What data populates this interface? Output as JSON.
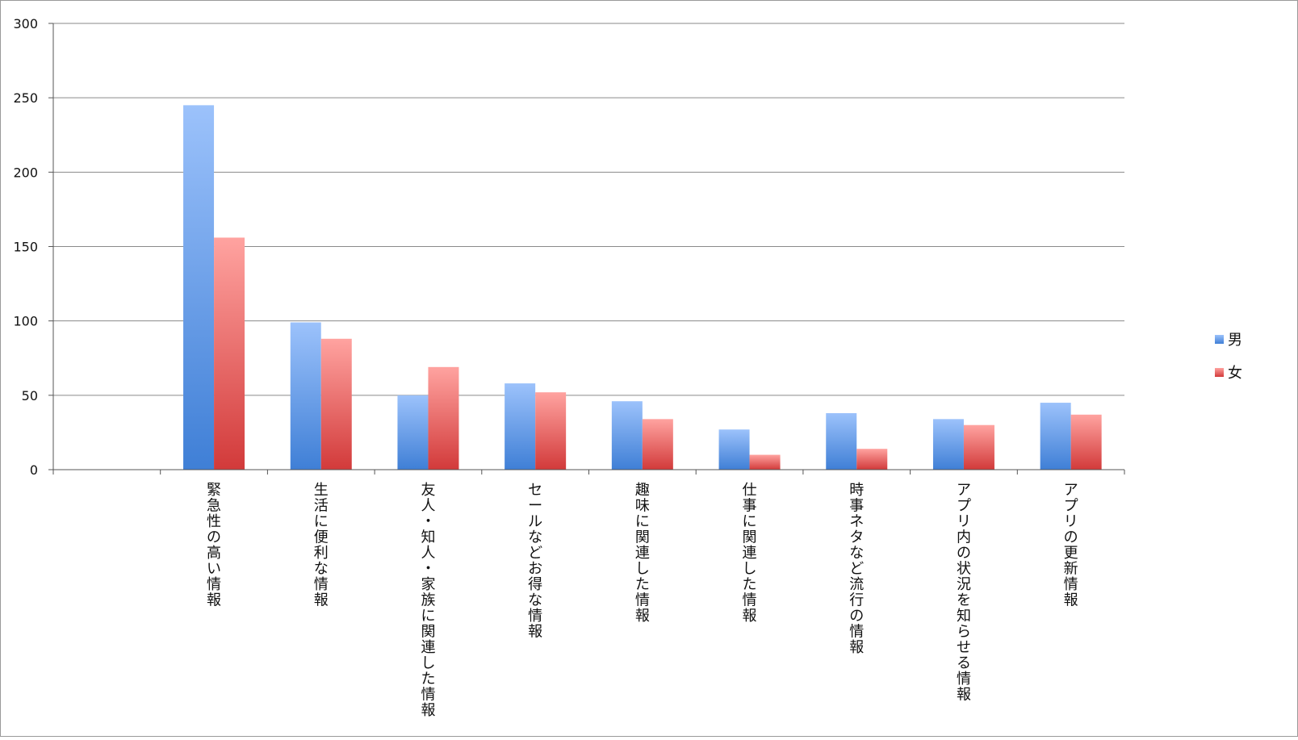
{
  "chart_data": {
    "type": "bar",
    "categories": [
      "",
      "緊急性の高い情報",
      "生活に便利な情報",
      "友人・知人・家族に関連した情報",
      "セールなどお得な情報",
      "趣味に関連した情報",
      "仕事に関連した情報",
      "時事ネタなど流行の情報",
      "アプリ内の状況を知らせる情報",
      "アプリの更新情報"
    ],
    "series": [
      {
        "name": "男",
        "color": "#4a86d8",
        "values": [
          0,
          245,
          99,
          50,
          58,
          46,
          27,
          38,
          34,
          45
        ]
      },
      {
        "name": "女",
        "color": "#d94a4a",
        "values": [
          0,
          156,
          88,
          69,
          52,
          34,
          10,
          14,
          30,
          37
        ]
      }
    ],
    "yticks": [
      "0",
      "50",
      "100",
      "150",
      "200",
      "250",
      "300"
    ],
    "ylim": [
      0,
      300
    ],
    "grid": true,
    "legend_position": "right"
  }
}
